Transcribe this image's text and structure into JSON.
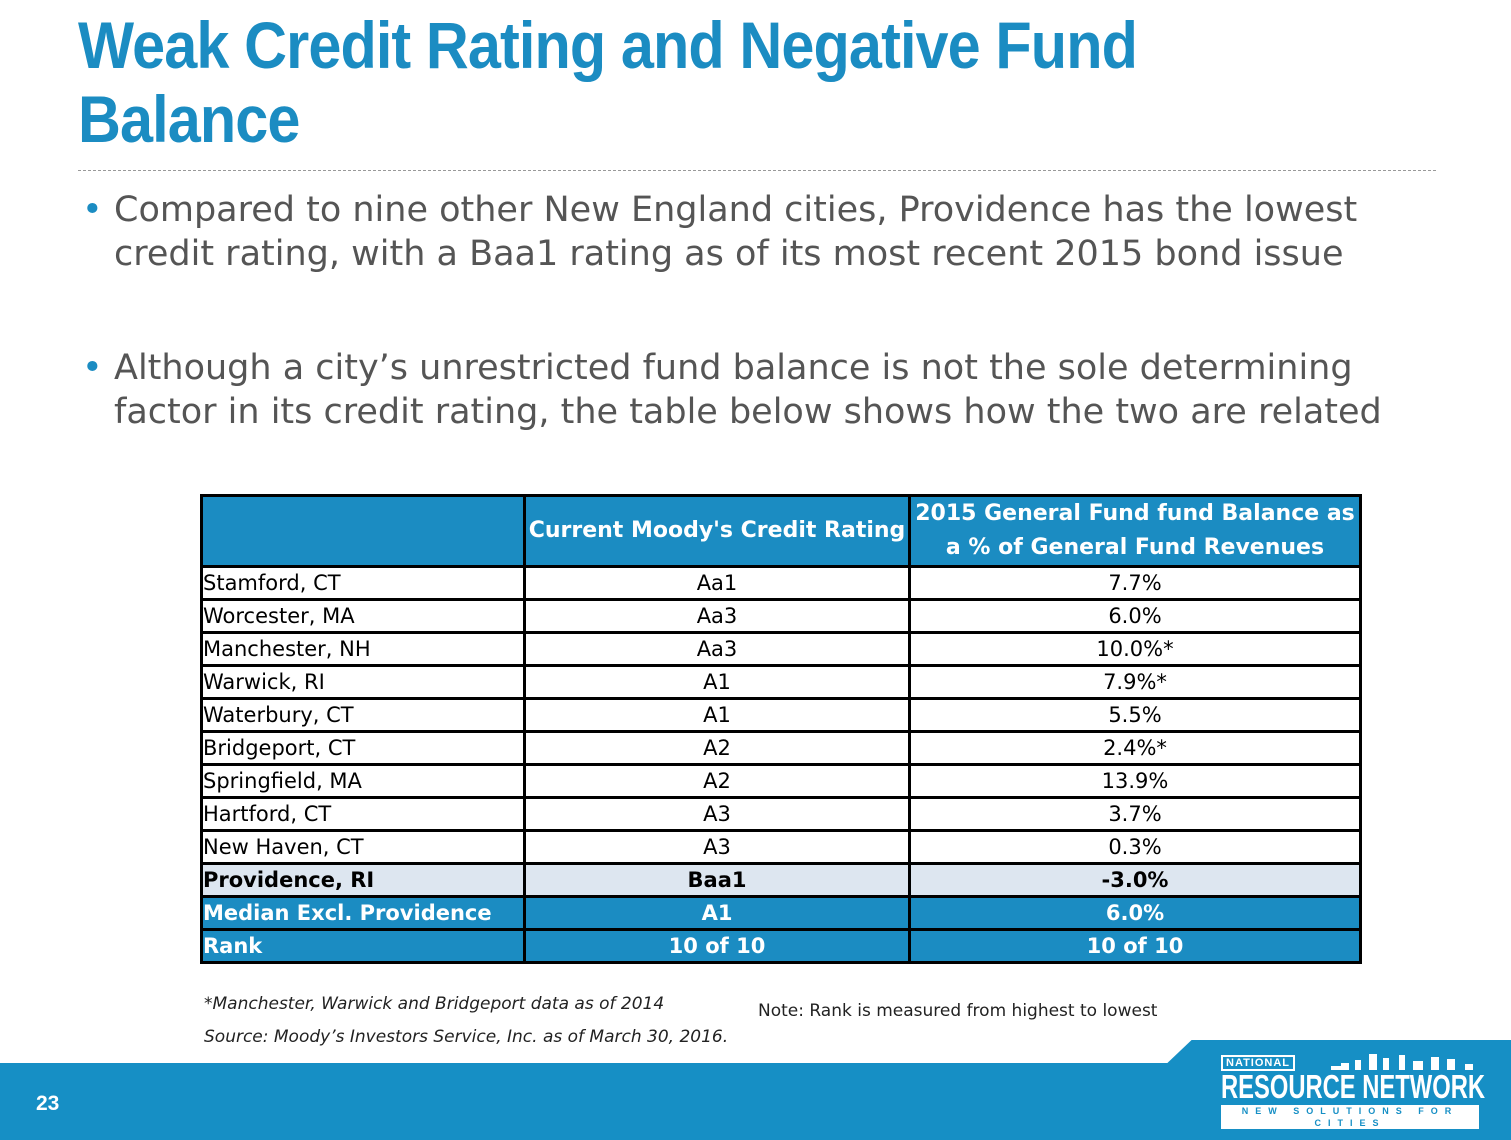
{
  "title": "Weak Credit Rating and Negative Fund Balance",
  "bullets": [
    "Compared to nine other New England cities, Providence has the lowest credit rating, with a Baa1 rating as of its most recent 2015 bond issue",
    "Although a city’s unrestricted fund balance is not the sole determining factor in its credit rating, the table below shows how the two are related"
  ],
  "bullet_symbol": "•",
  "table": {
    "headers": [
      "",
      "Current Moody's Credit Rating",
      "2015 General Fund fund Balance as a % of  General Fund Revenues"
    ],
    "rows": [
      [
        "Stamford, CT",
        "Aa1",
        "7.7%"
      ],
      [
        "Worcester, MA",
        "Aa3",
        "6.0%"
      ],
      [
        "Manchester, NH",
        "Aa3",
        "10.0%*"
      ],
      [
        "Warwick, RI",
        "A1",
        "7.9%*"
      ],
      [
        "Waterbury, CT",
        "A1",
        "5.5%"
      ],
      [
        "Bridgeport, CT",
        "A2",
        "2.4%*"
      ],
      [
        "Springfield, MA",
        "A2",
        "13.9%"
      ],
      [
        "Hartford, CT",
        "A3",
        "3.7%"
      ],
      [
        "New Haven, CT",
        "A3",
        "0.3%"
      ],
      [
        "Providence, RI",
        "Baa1",
        "-3.0%"
      ],
      [
        "Median Excl. Providence",
        "A1",
        "6.0%"
      ],
      [
        "Rank",
        "10 of 10",
        "10 of 10"
      ]
    ]
  },
  "footnote": "*Manchester, Warwick and Bridgeport data as of 2014",
  "note": "Note: Rank is measured from highest to lowest",
  "source": "Source: Moody’s Investors Service, Inc. as of March 30, 2016.",
  "page_number": "23",
  "logo": {
    "top": "NATIONAL",
    "main": "RESOURCE NETWORK",
    "tagline": "NEW SOLUTIONS FOR CITIES"
  },
  "colors": {
    "accent": "#1b8cc2",
    "band": "#168fc5",
    "highlight_row": "#dde6f0"
  }
}
